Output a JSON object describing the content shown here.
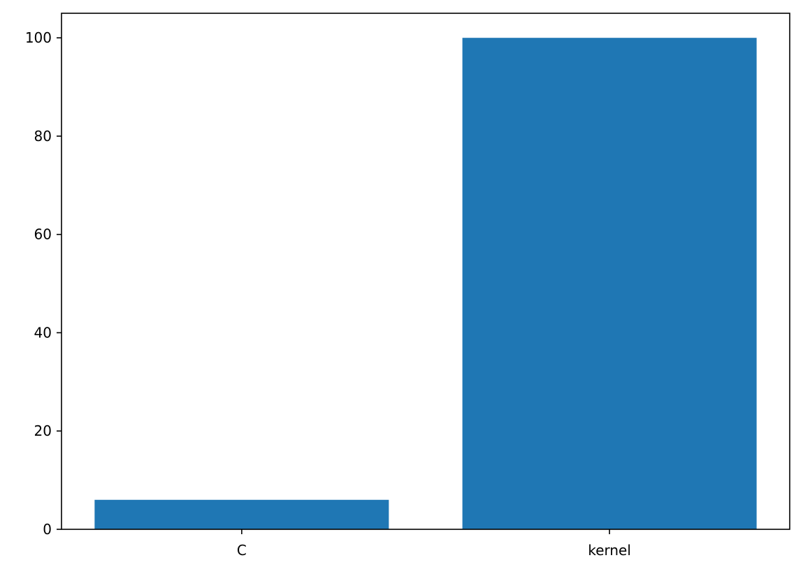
{
  "chart_data": {
    "type": "bar",
    "title": "",
    "xlabel": "",
    "ylabel": "",
    "categories": [
      "C",
      "kernel"
    ],
    "values": [
      6,
      100
    ],
    "ylim": [
      0,
      105
    ],
    "yticks": [
      "0",
      "20",
      "40",
      "60",
      "80",
      "100"
    ],
    "grid": false,
    "colors": {
      "bar": "#1f77b4",
      "axes": "#000000",
      "background": "#ffffff"
    }
  }
}
